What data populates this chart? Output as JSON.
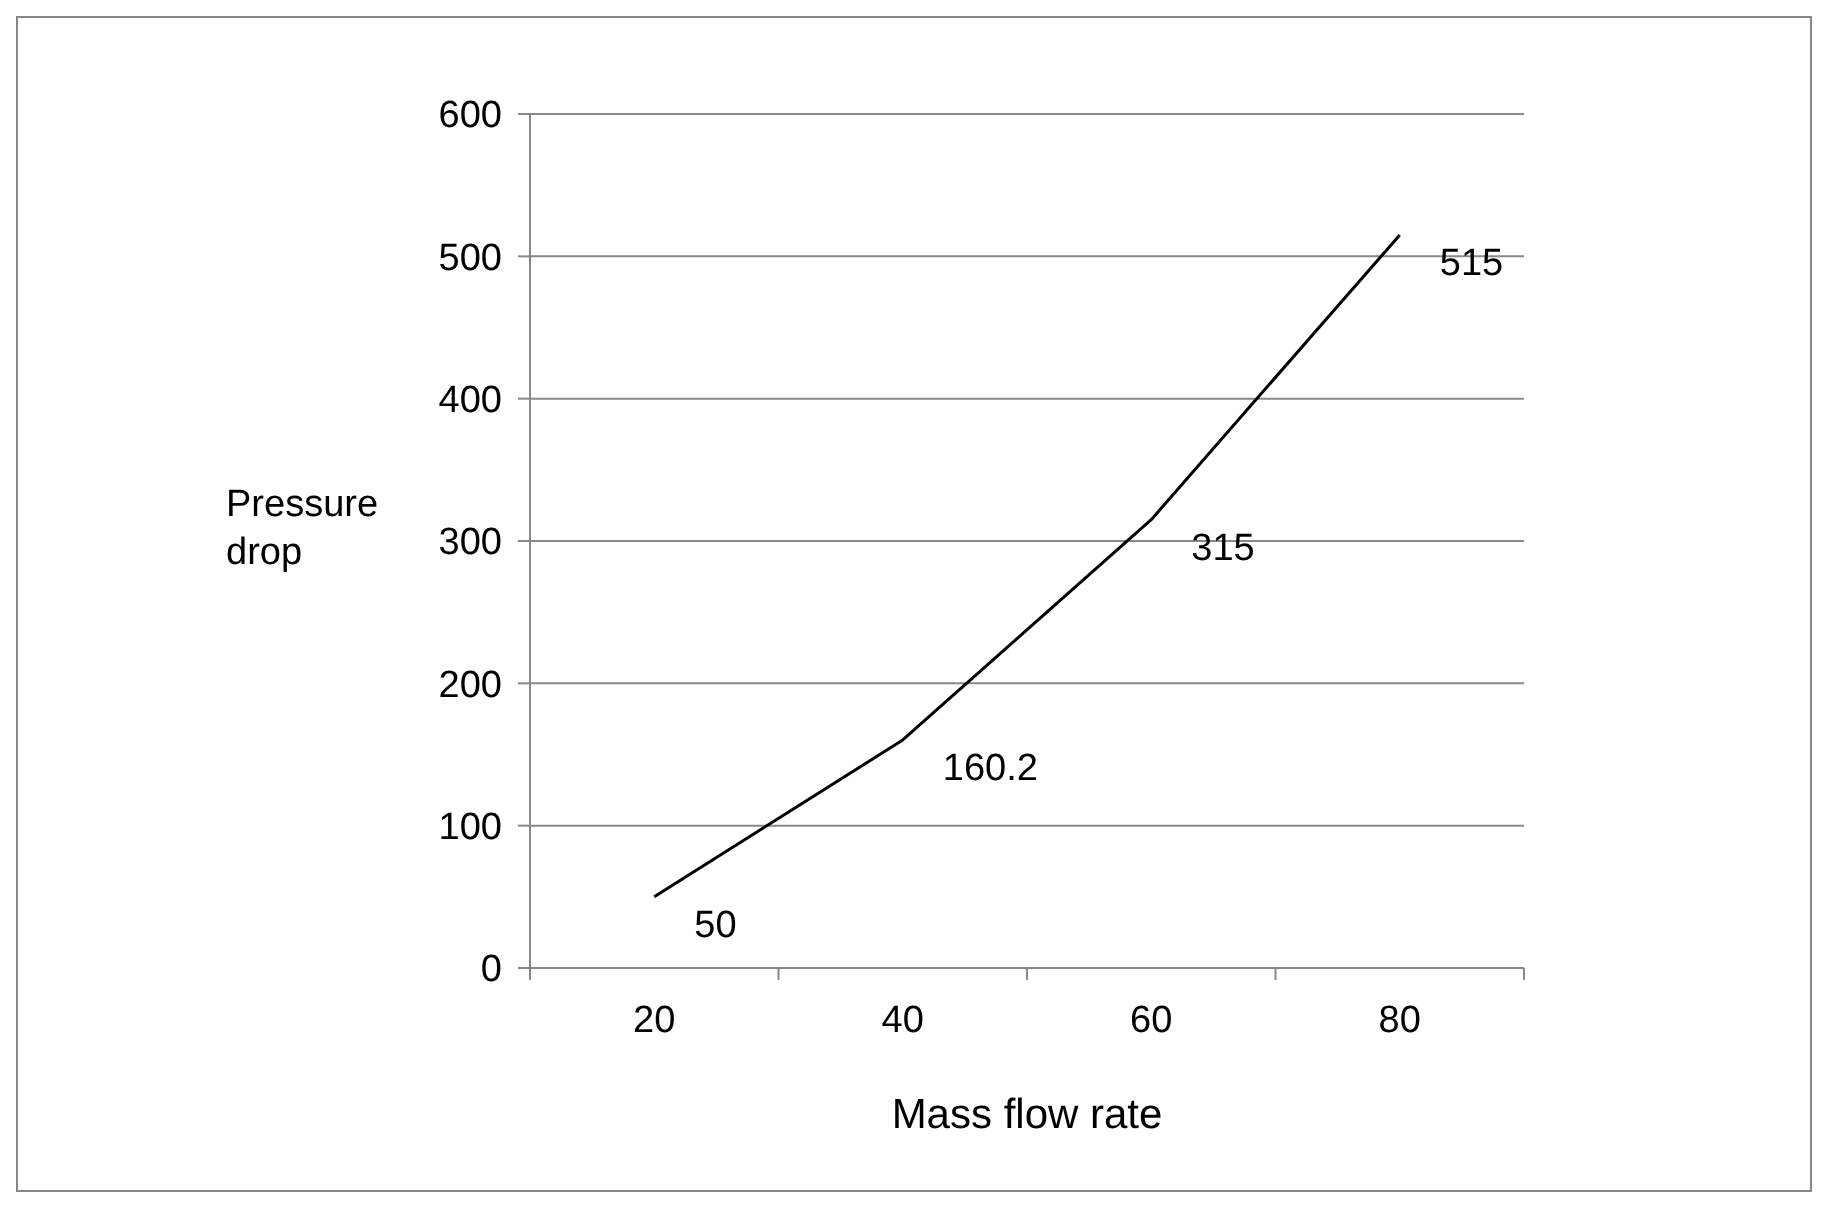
{
  "chart_data": {
    "type": "line",
    "xlabel": "Mass flow rate",
    "ylabel": "Pressure drop",
    "categories": [
      "20",
      "40",
      "60",
      "80"
    ],
    "series": [
      {
        "color": "#000000",
        "values": [
          50,
          160.2,
          315,
          515
        ]
      }
    ],
    "ylim": [
      0,
      600
    ],
    "yticks": [
      0,
      100,
      200,
      300,
      400,
      500,
      600
    ],
    "grid": "y",
    "data_labels": true,
    "marker": "none"
  }
}
